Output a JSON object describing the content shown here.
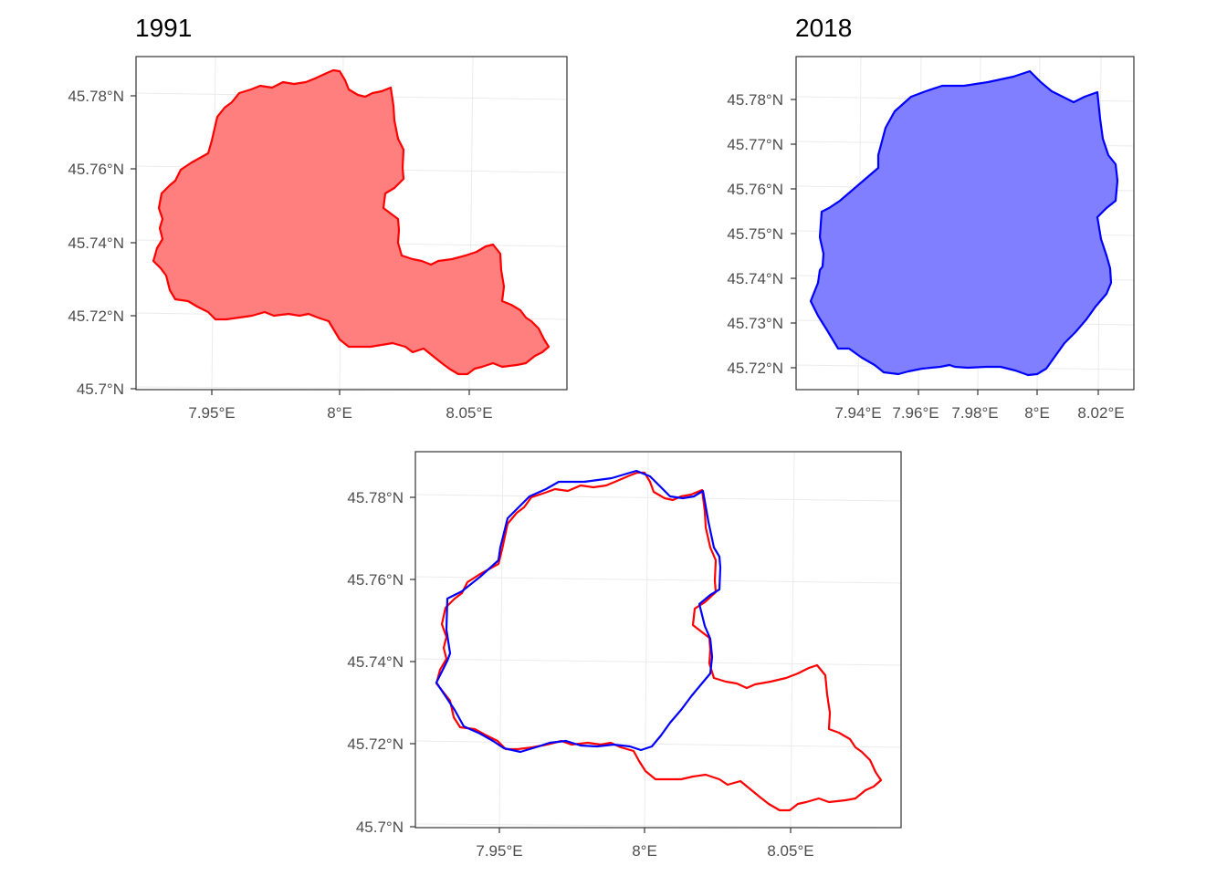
{
  "panels": [
    {
      "title": "1991",
      "y_ticks": [
        "45.78°N",
        "45.76°N",
        "45.74°N",
        "45.72°N",
        "45.7°N"
      ],
      "x_ticks": [
        "7.95°E",
        "8°E",
        "8.05°E"
      ],
      "colors": {
        "fill": "#ff7f7f",
        "stroke": "#ff0000"
      }
    },
    {
      "title": "2018",
      "y_ticks": [
        "45.78°N",
        "45.77°N",
        "45.76°N",
        "45.75°N",
        "45.74°N",
        "45.73°N",
        "45.72°N"
      ],
      "x_ticks": [
        "7.94°E",
        "7.96°E",
        "7.98°E",
        "8°E",
        "8.02°E"
      ],
      "colors": {
        "fill": "#7f7fff",
        "stroke": "#0000ff"
      }
    },
    {
      "title": "",
      "y_ticks": [
        "45.78°N",
        "45.76°N",
        "45.74°N",
        "45.72°N",
        "45.7°N"
      ],
      "x_ticks": [
        "7.95°E",
        "8°E",
        "8.05°E"
      ],
      "colors": {
        "red": "#ff0000",
        "blue": "#0000ff"
      }
    }
  ]
}
